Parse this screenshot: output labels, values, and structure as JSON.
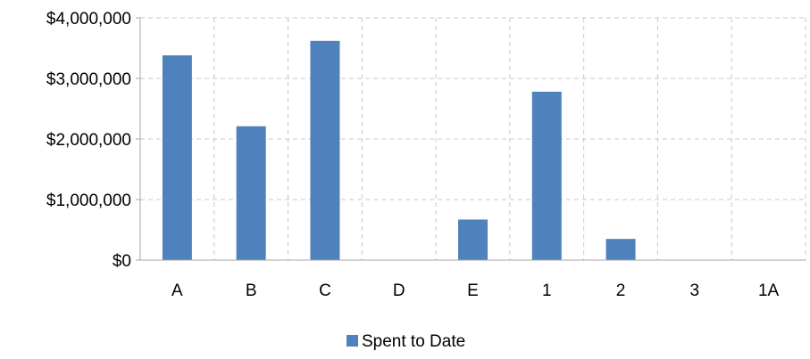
{
  "chart_data": {
    "type": "bar",
    "title": "",
    "xlabel": "",
    "ylabel": "",
    "categories": [
      "A",
      "B",
      "C",
      "D",
      "E",
      "1",
      "2",
      "3",
      "1A"
    ],
    "series": [
      {
        "name": "Spent to Date",
        "values": [
          3380000,
          2210000,
          3620000,
          0,
          670000,
          2780000,
          350000,
          0,
          0
        ]
      }
    ],
    "ylim": [
      0,
      4000000
    ],
    "yticks": [
      0,
      1000000,
      2000000,
      3000000,
      4000000
    ],
    "ytick_labels": [
      "$0",
      "$1,000,000",
      "$2,000,000",
      "$3,000,000",
      "$4,000,000"
    ],
    "grid": {
      "horizontal": true,
      "vertical": true,
      "style": "dashed"
    },
    "legend": {
      "position": "bottom-center",
      "entries": [
        "Spent to Date"
      ]
    },
    "colors": {
      "bar": "#4F81BD",
      "grid": "#c8c8c8",
      "axis": "#a6a6a6"
    }
  }
}
